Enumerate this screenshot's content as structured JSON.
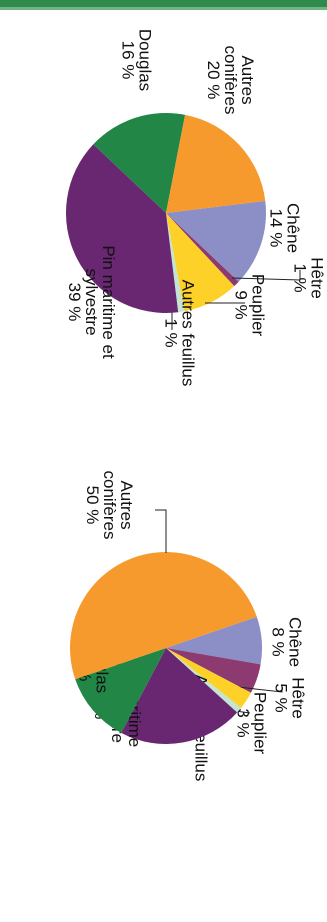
{
  "colors": {
    "chene": "#8c8ec6",
    "hetre": "#8c3a6f",
    "peuplier": "#fdd128",
    "autres_feuillus": "#c6e4d3",
    "pin": "#682770",
    "douglas": "#218646",
    "autres_coniferes": "#f79a2e",
    "header_bar": "#2f8a4c"
  },
  "chart_data": [
    {
      "type": "pie",
      "slices": [
        {
          "key": "chene",
          "label": [
            "Chêne",
            "14 %"
          ],
          "value": 14
        },
        {
          "key": "hetre",
          "label": [
            "Hêtre",
            "1 %"
          ],
          "value": 1
        },
        {
          "key": "peuplier",
          "label": [
            "Peuplier",
            "9 %"
          ],
          "value": 9
        },
        {
          "key": "autres_feuillus",
          "label": [
            "Autres feuillus",
            "1 %"
          ],
          "value": 1
        },
        {
          "key": "pin",
          "label": [
            "Pin maritime et",
            "sylvestre",
            "39 %"
          ],
          "value": 39
        },
        {
          "key": "douglas",
          "label": [
            "Douglas",
            "16 %"
          ],
          "value": 16
        },
        {
          "key": "autres_coniferes",
          "label": [
            "Autres",
            "conifères",
            "20 %"
          ],
          "value": 20
        }
      ]
    },
    {
      "type": "pie",
      "slices": [
        {
          "key": "chene",
          "label": [
            "Chêne",
            "8 %"
          ],
          "value": 8
        },
        {
          "key": "hetre",
          "label": [
            "Hêtre",
            "5 %"
          ],
          "value": 5
        },
        {
          "key": "peuplier",
          "label": [
            "Peuplier",
            "3 %"
          ],
          "value": 3
        },
        {
          "key": "autres_feuillus",
          "label": [
            "Autres feuillus",
            "1 %"
          ],
          "value": 1
        },
        {
          "key": "pin",
          "label": [
            "Pin maritime",
            "et sylvestre",
            "21 %"
          ],
          "value": 21
        },
        {
          "key": "douglas",
          "label": [
            "Douglas",
            "12 %"
          ],
          "value": 12
        },
        {
          "key": "autres_coniferes",
          "label": [
            "Autres",
            "conifères",
            "50 %"
          ],
          "value": 50
        }
      ]
    }
  ]
}
